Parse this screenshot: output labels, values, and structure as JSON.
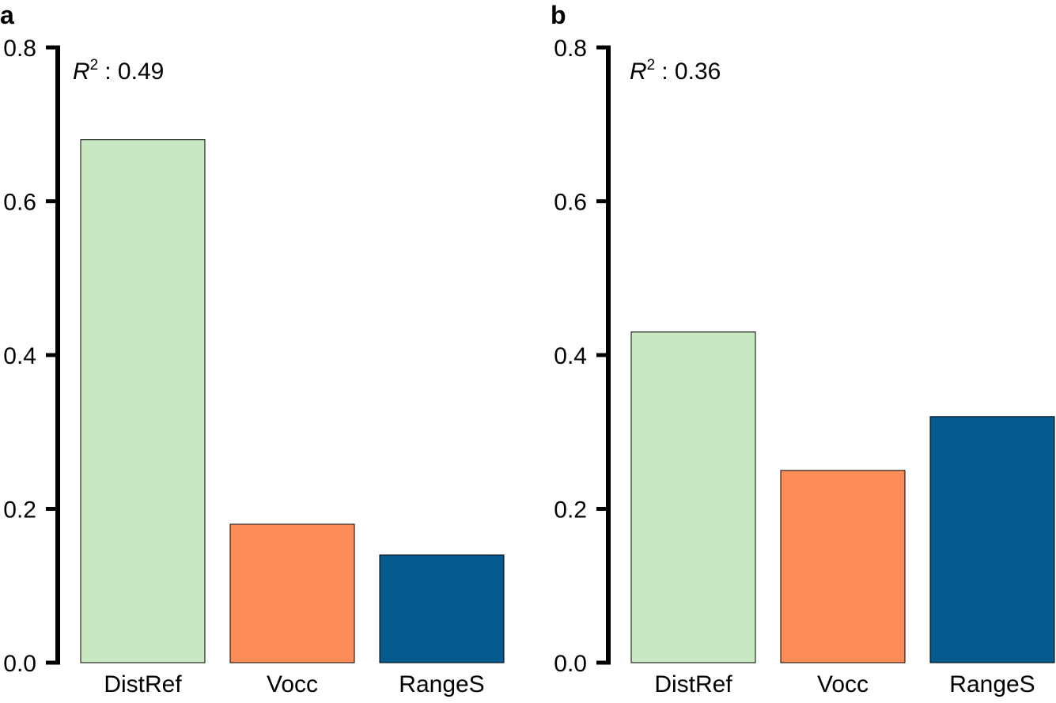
{
  "chart_data": [
    {
      "type": "bar",
      "panel": "a",
      "categories": [
        "DistRef",
        "Vocc",
        "RangeS"
      ],
      "values": [
        0.68,
        0.18,
        0.14
      ],
      "colors": [
        "#c7e8c0",
        "#fc8d59",
        "#045a8d"
      ],
      "r2_symbol": "R",
      "r2_superscript": "2",
      "r2_value": ": 0.49",
      "ylim": [
        0,
        0.8
      ],
      "yticks": [
        0.0,
        0.2,
        0.4,
        0.6,
        0.8
      ],
      "ytick_labels": [
        "0.0",
        "0.2",
        "0.4",
        "0.6",
        "0.8"
      ],
      "title": "",
      "xlabel": "",
      "ylabel": "",
      "grid": false
    },
    {
      "type": "bar",
      "panel": "b",
      "categories": [
        "DistRef",
        "Vocc",
        "RangeS"
      ],
      "values": [
        0.43,
        0.25,
        0.32
      ],
      "colors": [
        "#c7e8c0",
        "#fc8d59",
        "#045a8d"
      ],
      "r2_symbol": "R",
      "r2_superscript": "2",
      "r2_value": ": 0.36",
      "ylim": [
        0,
        0.8
      ],
      "yticks": [
        0.0,
        0.2,
        0.4,
        0.6,
        0.8
      ],
      "ytick_labels": [
        "0.0",
        "0.2",
        "0.4",
        "0.6",
        "0.8"
      ],
      "title": "",
      "xlabel": "",
      "ylabel": "",
      "grid": false
    }
  ]
}
